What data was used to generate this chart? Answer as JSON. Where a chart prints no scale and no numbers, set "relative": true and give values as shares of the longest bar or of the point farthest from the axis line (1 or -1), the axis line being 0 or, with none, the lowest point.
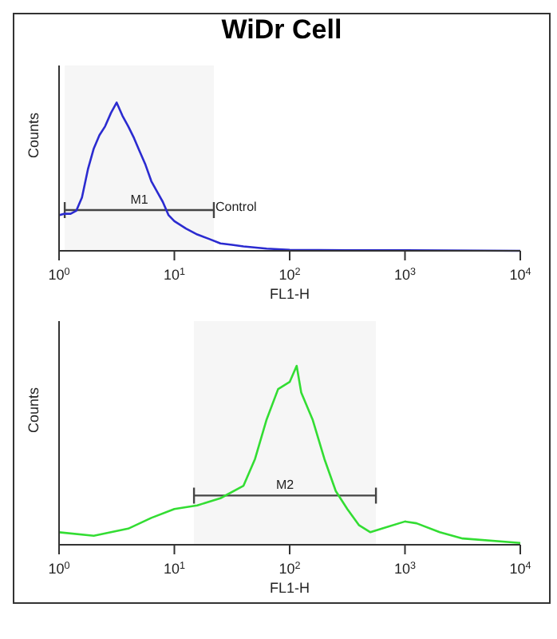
{
  "chart_data": [
    {
      "type": "line",
      "title": "WiDr Cell",
      "xlabel": "FL1-H",
      "ylabel": "Counts",
      "relative": true,
      "log": "x",
      "xlim": [
        1,
        10000
      ],
      "xticks": [
        {
          "value": 1,
          "label": "10$^{0}$"
        },
        {
          "value": 10,
          "label": "10$^{1}$"
        },
        {
          "value": 100,
          "label": "10$^{2}$"
        },
        {
          "value": 1000,
          "label": "10$^{3}$"
        },
        {
          "value": 10000,
          "label": "10$^{4}$"
        }
      ],
      "x": [
        1,
        1.12,
        1.26,
        1.41,
        1.58,
        1.78,
        2,
        2.24,
        2.51,
        2.82,
        3.16,
        3.55,
        3.98,
        4.47,
        5.01,
        5.62,
        6.31,
        7.08,
        7.94,
        8.91,
        10,
        12.6,
        15.8,
        20,
        25.1,
        31.6,
        39.8,
        63.1,
        100,
        316,
        1000,
        10000
      ],
      "series": [
        {
          "color": "#2b2bd0",
          "values": [
            0.24,
            0.25,
            0.25,
            0.27,
            0.36,
            0.55,
            0.69,
            0.78,
            0.84,
            0.93,
            1,
            0.91,
            0.84,
            0.76,
            0.67,
            0.58,
            0.47,
            0.4,
            0.33,
            0.24,
            0.2,
            0.15,
            0.11,
            0.08,
            0.05,
            0.04,
            0.03,
            0.015,
            0.007,
            0.004,
            0.004,
            0
          ]
        }
      ],
      "bands": [
        {
          "axis": "x",
          "from": 1.12,
          "to": 22,
          "label": "M1"
        }
      ],
      "annotations": [
        "Control"
      ],
      "grid": false,
      "legend": false
    },
    {
      "type": "line",
      "xlabel": "FL1-H",
      "ylabel": "Counts",
      "relative": true,
      "log": "x",
      "xlim": [
        1,
        10000
      ],
      "xticks": [
        {
          "value": 1,
          "label": "10$^{0}$"
        },
        {
          "value": 10,
          "label": "10$^{1}$"
        },
        {
          "value": 100,
          "label": "10$^{2}$"
        },
        {
          "value": 1000,
          "label": "10$^{3}$"
        },
        {
          "value": 10000,
          "label": "10$^{4}$"
        }
      ],
      "x": [
        1,
        2,
        3.98,
        6.31,
        10,
        15.8,
        25.1,
        39.8,
        50.1,
        63.1,
        79.4,
        100,
        115,
        126,
        158,
        200,
        251,
        316,
        398,
        501,
        631,
        1000,
        1259,
        2000,
        3162,
        10000
      ],
      "series": [
        {
          "color": "#33dd33",
          "values": [
            0.07,
            0.05,
            0.09,
            0.15,
            0.2,
            0.22,
            0.26,
            0.33,
            0.48,
            0.7,
            0.87,
            0.91,
            1,
            0.85,
            0.7,
            0.48,
            0.3,
            0.2,
            0.11,
            0.07,
            0.09,
            0.13,
            0.12,
            0.07,
            0.035,
            0.01
          ]
        }
      ],
      "bands": [
        {
          "axis": "x",
          "from": 14.8,
          "to": 560,
          "label": "M2"
        }
      ],
      "grid": false,
      "legend": false
    }
  ]
}
